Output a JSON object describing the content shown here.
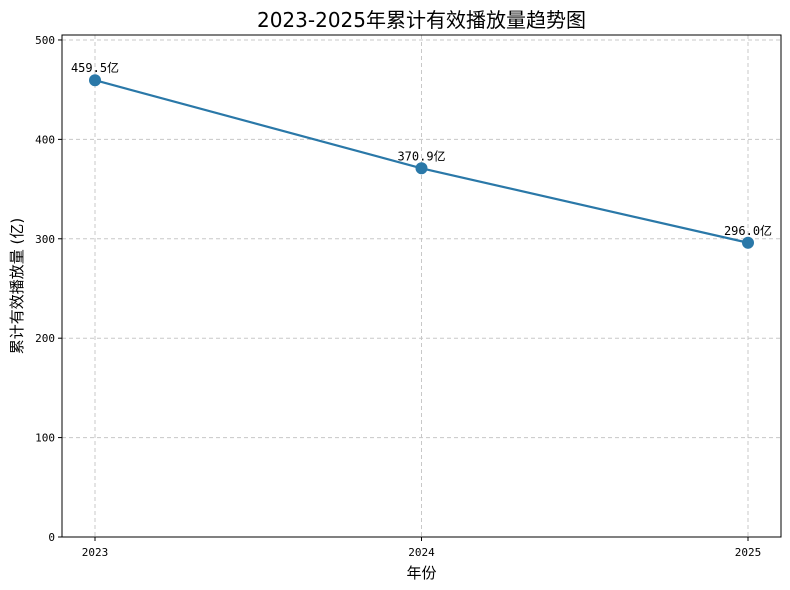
{
  "chart_data": {
    "type": "line",
    "title": "2023-2025年累计有效播放量趋势图",
    "xlabel": "年份",
    "ylabel": "累计有效播放量 (亿)",
    "categories": [
      "2023",
      "2024",
      "2025"
    ],
    "series": [
      {
        "values": [
          459.5,
          370.9,
          296.0
        ],
        "labels": [
          "459.5亿",
          "370.9亿",
          "296.0亿"
        ],
        "color": "#2a78a8"
      }
    ],
    "ylim": [
      0,
      505
    ],
    "yticks": [
      0,
      100,
      200,
      300,
      400,
      500
    ],
    "grid": true,
    "legend": "none"
  }
}
